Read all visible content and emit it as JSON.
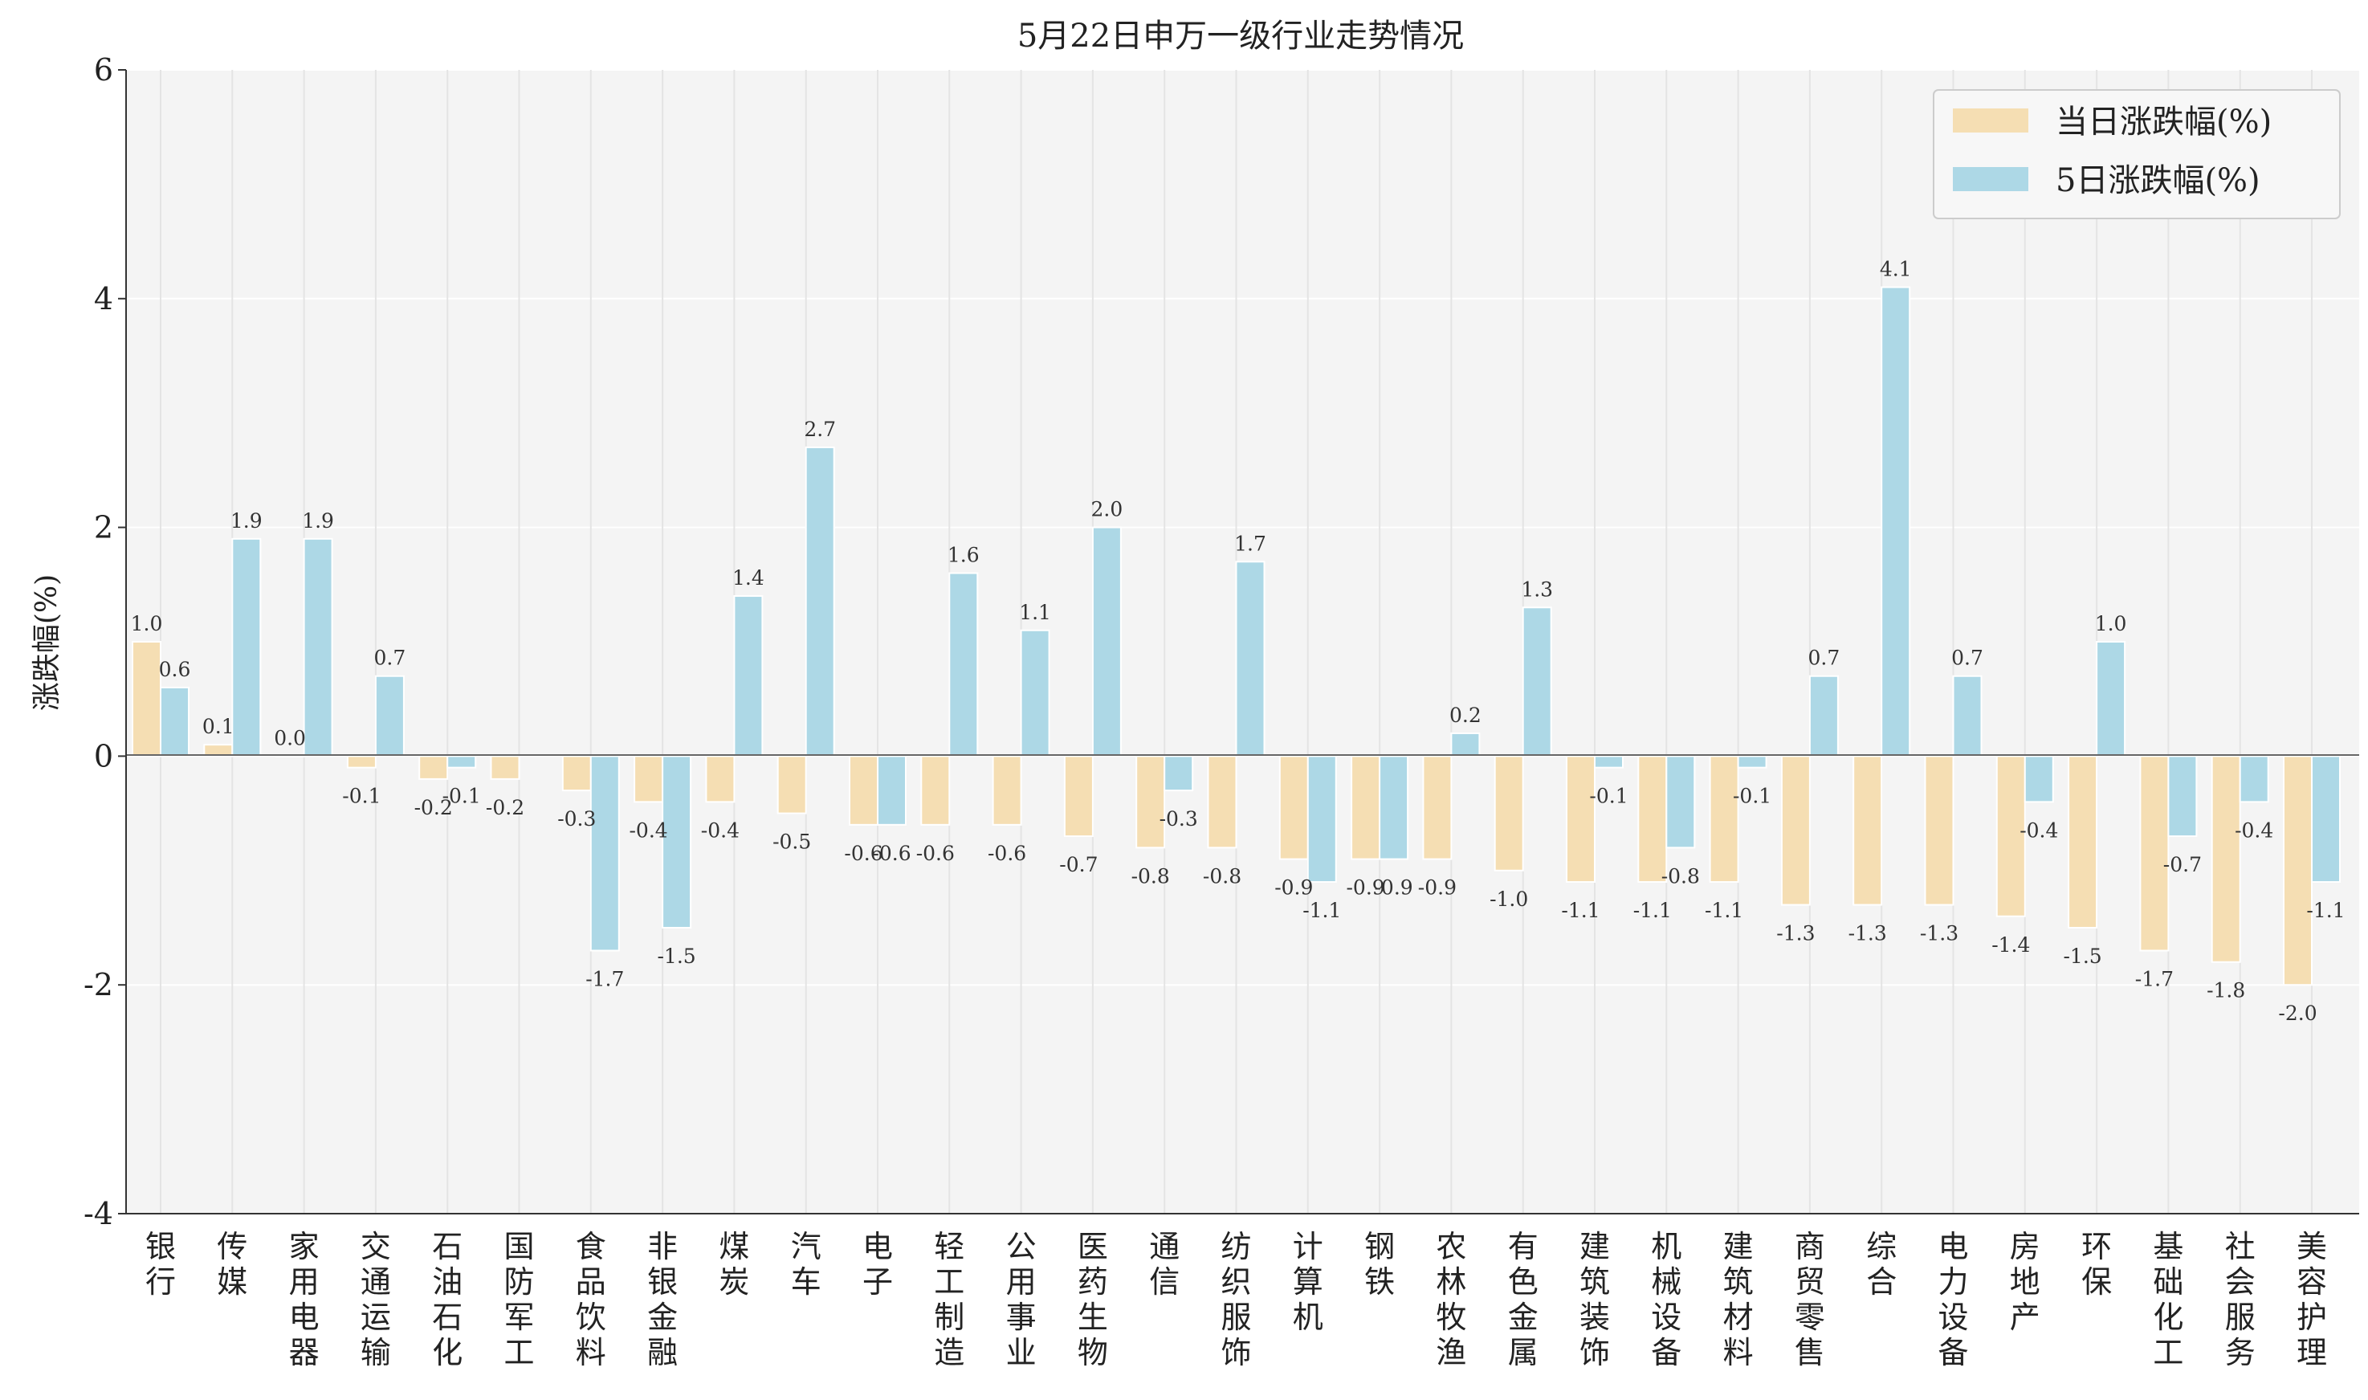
{
  "chart_data": {
    "type": "bar",
    "title": "5月22日申万一级行业走势情况",
    "ylabel": "涨跌幅(%)",
    "xlabel": "",
    "ylim": [
      -4,
      6
    ],
    "yticks": [
      -4,
      -2,
      0,
      2,
      4,
      6
    ],
    "grid": true,
    "legend_position": "top-right",
    "categories": [
      "银行",
      "传媒",
      "家用电器",
      "交通运输",
      "石油石化",
      "国防军工",
      "食品饮料",
      "非银金融",
      "煤炭",
      "汽车",
      "电子",
      "轻工制造",
      "公用事业",
      "医药生物",
      "通信",
      "纺织服饰",
      "计算机",
      "钢铁",
      "农林牧渔",
      "有色金属",
      "建筑装饰",
      "机械设备",
      "建筑材料",
      "商贸零售",
      "综合",
      "电力设备",
      "房地产",
      "环保",
      "基础化工",
      "社会服务",
      "美容护理"
    ],
    "series": [
      {
        "name": "当日涨跌幅(%)",
        "color": "#f5deb3",
        "values": [
          1.0,
          0.1,
          0.0,
          -0.1,
          -0.2,
          -0.2,
          -0.3,
          -0.4,
          -0.4,
          -0.5,
          -0.6,
          -0.6,
          -0.6,
          -0.7,
          -0.8,
          -0.8,
          -0.9,
          -0.9,
          -0.9,
          -1.0,
          -1.1,
          -1.1,
          -1.1,
          -1.3,
          -1.3,
          -1.3,
          -1.4,
          -1.5,
          -1.7,
          -1.8,
          -2.0
        ]
      },
      {
        "name": "5日涨跌幅(%)",
        "color": "#add8e6",
        "values": [
          0.6,
          1.9,
          1.9,
          0.7,
          -0.1,
          null,
          -1.7,
          -1.5,
          1.4,
          2.7,
          -0.6,
          1.6,
          1.1,
          2.0,
          -0.3,
          1.7,
          -1.1,
          -0.9,
          0.2,
          1.3,
          -0.1,
          -0.8,
          -0.1,
          0.7,
          4.1,
          0.7,
          -0.4,
          1.0,
          -0.7,
          -0.4,
          -1.1
        ]
      }
    ]
  }
}
